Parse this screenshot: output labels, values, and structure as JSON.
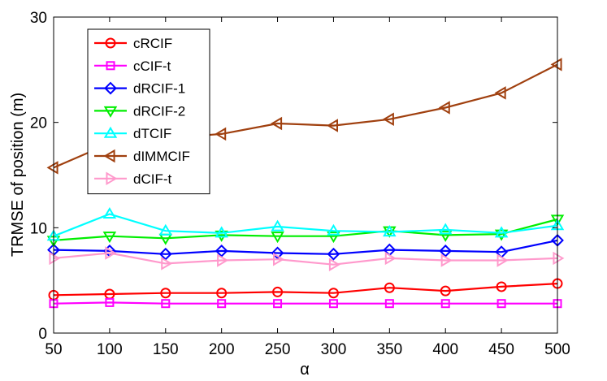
{
  "chart_data": {
    "type": "line",
    "title": "",
    "xlabel": "α",
    "ylabel": "TRMSE of position (m)",
    "xlim": [
      50,
      500
    ],
    "ylim": [
      0,
      30
    ],
    "x": [
      50,
      100,
      150,
      200,
      250,
      300,
      350,
      400,
      450,
      500
    ],
    "x_ticks": [
      "50",
      "100",
      "150",
      "200",
      "250",
      "300",
      "350",
      "400",
      "450",
      "500"
    ],
    "y_ticks": [
      "0",
      "10",
      "20",
      "30"
    ],
    "grid": false,
    "legend_position": "top-left",
    "series": [
      {
        "name": "cRCIF",
        "color": "#ff0000",
        "marker": "circle",
        "values": [
          3.6,
          3.7,
          3.8,
          3.8,
          3.9,
          3.8,
          4.3,
          4.0,
          4.4,
          4.7
        ]
      },
      {
        "name": "cCIF-t",
        "color": "#ff00ff",
        "marker": "square",
        "values": [
          2.8,
          2.9,
          2.8,
          2.8,
          2.8,
          2.8,
          2.8,
          2.8,
          2.8,
          2.8
        ]
      },
      {
        "name": "dRCIF-1",
        "color": "#0000ff",
        "marker": "diamond",
        "values": [
          7.9,
          7.8,
          7.5,
          7.8,
          7.6,
          7.5,
          7.9,
          7.8,
          7.7,
          8.8
        ]
      },
      {
        "name": "dRCIF-2",
        "color": "#00ee00",
        "marker": "triangle-down",
        "values": [
          8.8,
          9.2,
          9.0,
          9.3,
          9.2,
          9.2,
          9.7,
          9.3,
          9.4,
          10.8
        ]
      },
      {
        "name": "dTCIF",
        "color": "#00ffff",
        "marker": "triangle-up",
        "values": [
          9.2,
          11.3,
          9.7,
          9.5,
          10.1,
          9.7,
          9.6,
          9.8,
          9.5,
          10.2
        ]
      },
      {
        "name": "dIMMCIF",
        "color": "#a0400f",
        "marker": "triangle-left",
        "values": [
          15.7,
          18.0,
          18.5,
          18.9,
          19.9,
          19.7,
          20.3,
          21.4,
          22.8,
          25.5
        ]
      },
      {
        "name": "dCIF-t",
        "color": "#ff99cc",
        "marker": "triangle-right",
        "values": [
          7.1,
          7.6,
          6.6,
          6.9,
          7.0,
          6.5,
          7.1,
          6.9,
          6.9,
          7.1
        ]
      }
    ]
  }
}
